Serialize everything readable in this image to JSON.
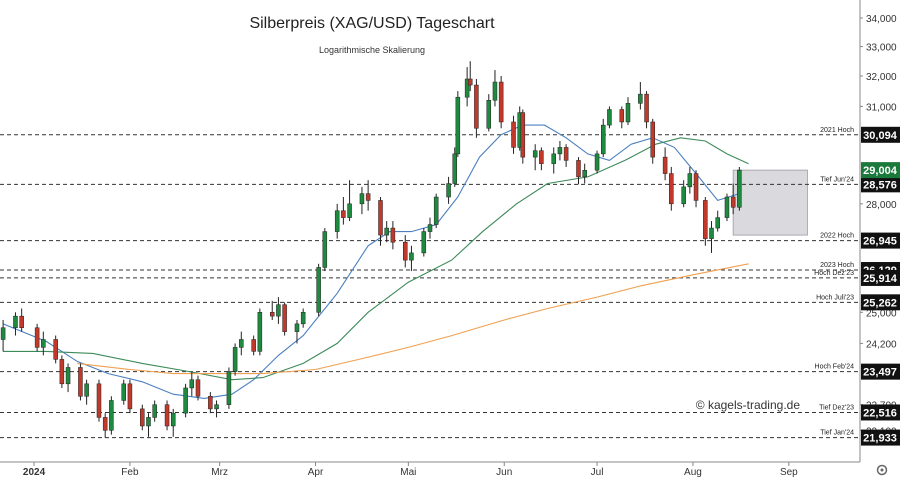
{
  "chart_data": {
    "type": "candlestick",
    "title": "Silberpreis (XAG/USD) Tageschart",
    "subtitle": "Logarithmische Skalierung",
    "watermark": "© kagels-trading.de",
    "y_scale": "log",
    "ylim": [
      21650,
      34000
    ],
    "y_ticks": [
      {
        "value": 34000,
        "label": "34,000"
      },
      {
        "value": 33000,
        "label": "33,000"
      },
      {
        "value": 32000,
        "label": "32,000"
      },
      {
        "value": 31000,
        "label": "31,000"
      },
      {
        "value": 28000,
        "label": "28,000"
      },
      {
        "value": 25000,
        "label": "25,000"
      },
      {
        "value": 24200,
        "label": "24,200"
      },
      {
        "value": 22700,
        "label": "22,700"
      },
      {
        "value": 22100,
        "label": "22,100"
      }
    ],
    "x_ticks": [
      {
        "date": "2024-01-01",
        "label": "2024"
      },
      {
        "date": "2024-02-01",
        "label": "Feb"
      },
      {
        "date": "2024-03-01",
        "label": "Mrz"
      },
      {
        "date": "2024-04-01",
        "label": "Apr"
      },
      {
        "date": "2024-05-01",
        "label": "Mai"
      },
      {
        "date": "2024-06-01",
        "label": "Jun"
      },
      {
        "date": "2024-07-01",
        "label": "Jul"
      },
      {
        "date": "2024-08-01",
        "label": "Aug"
      },
      {
        "date": "2024-09-01",
        "label": "Sep"
      }
    ],
    "x_range": [
      "2023-12-21",
      "2024-09-24"
    ],
    "levels": [
      {
        "value": 30094,
        "label": "30,094",
        "note": "2021 Hoch",
        "highlight": false
      },
      {
        "value": 28576,
        "label": "28,576",
        "note": "Tief Jun'24",
        "highlight": false
      },
      {
        "value": 26945,
        "label": "26,945",
        "note": "2022 Hoch",
        "highlight": false
      },
      {
        "value": 26129,
        "label": "26,129",
        "note": "2023 Hoch",
        "highlight": false
      },
      {
        "value": 25914,
        "label": "25,914",
        "note": "Hoch Dez'23",
        "highlight": false
      },
      {
        "value": 25262,
        "label": "25,262",
        "note": "Hoch Juli'23",
        "highlight": false
      },
      {
        "value": 23497,
        "label": "23,497",
        "note": "Hoch Feb'24",
        "highlight": false
      },
      {
        "value": 22516,
        "label": "22,516",
        "note": "Tief Dez'23",
        "highlight": false
      },
      {
        "value": 21933,
        "label": "21,933",
        "note": "Tief Jan'24",
        "highlight": false
      }
    ],
    "last_price": {
      "value": 29004,
      "label": "29,004"
    },
    "zone": {
      "from": "2024-08-14",
      "to": "2024-09-07",
      "low": 27100,
      "high": 29004
    },
    "moving_averages": [
      {
        "color": "#4a7fc1",
        "points": [
          [
            "2023-12-22",
            24700
          ],
          [
            "2024-01-05",
            24250
          ],
          [
            "2024-01-15",
            23750
          ],
          [
            "2024-01-25",
            23450
          ],
          [
            "2024-02-05",
            23250
          ],
          [
            "2024-02-15",
            22950
          ],
          [
            "2024-02-25",
            22850
          ],
          [
            "2024-03-05",
            22950
          ],
          [
            "2024-03-12",
            23300
          ],
          [
            "2024-03-20",
            23900
          ],
          [
            "2024-03-28",
            24400
          ],
          [
            "2024-04-08",
            25500
          ],
          [
            "2024-04-18",
            26800
          ],
          [
            "2024-04-25",
            27200
          ],
          [
            "2024-05-02",
            27200
          ],
          [
            "2024-05-10",
            27400
          ],
          [
            "2024-05-17",
            28200
          ],
          [
            "2024-05-24",
            29400
          ],
          [
            "2024-05-31",
            30100
          ],
          [
            "2024-06-07",
            30400
          ],
          [
            "2024-06-14",
            30400
          ],
          [
            "2024-06-21",
            30000
          ],
          [
            "2024-06-28",
            29500
          ],
          [
            "2024-07-05",
            29300
          ],
          [
            "2024-07-12",
            29800
          ],
          [
            "2024-07-19",
            30000
          ],
          [
            "2024-07-26",
            29700
          ],
          [
            "2024-08-02",
            28900
          ],
          [
            "2024-08-09",
            28100
          ],
          [
            "2024-08-16",
            28300
          ]
        ]
      },
      {
        "color": "#3c8a5a",
        "points": [
          [
            "2023-12-22",
            24000
          ],
          [
            "2024-01-05",
            24000
          ],
          [
            "2024-01-20",
            23950
          ],
          [
            "2024-02-05",
            23700
          ],
          [
            "2024-02-20",
            23500
          ],
          [
            "2024-03-05",
            23300
          ],
          [
            "2024-03-15",
            23350
          ],
          [
            "2024-03-28",
            23700
          ],
          [
            "2024-04-08",
            24200
          ],
          [
            "2024-04-18",
            25000
          ],
          [
            "2024-05-01",
            25800
          ],
          [
            "2024-05-15",
            26400
          ],
          [
            "2024-05-25",
            27200
          ],
          [
            "2024-06-05",
            28000
          ],
          [
            "2024-06-15",
            28600
          ],
          [
            "2024-06-28",
            28800
          ],
          [
            "2024-07-10",
            29300
          ],
          [
            "2024-07-20",
            29800
          ],
          [
            "2024-07-28",
            30000
          ],
          [
            "2024-08-05",
            29900
          ],
          [
            "2024-08-12",
            29500
          ],
          [
            "2024-08-19",
            29200
          ]
        ]
      },
      {
        "color": "#f0a050",
        "points": [
          [
            "2024-01-15",
            23700
          ],
          [
            "2024-02-01",
            23550
          ],
          [
            "2024-02-15",
            23450
          ],
          [
            "2024-03-01",
            23450
          ],
          [
            "2024-03-15",
            23450
          ],
          [
            "2024-04-01",
            23550
          ],
          [
            "2024-04-15",
            23800
          ],
          [
            "2024-05-01",
            24100
          ],
          [
            "2024-05-15",
            24400
          ],
          [
            "2024-06-01",
            24800
          ],
          [
            "2024-06-15",
            25100
          ],
          [
            "2024-07-01",
            25400
          ],
          [
            "2024-07-15",
            25700
          ],
          [
            "2024-08-01",
            26000
          ],
          [
            "2024-08-19",
            26300
          ]
        ]
      }
    ],
    "candles": [
      [
        "2023-12-22",
        24300,
        24800,
        24000,
        24600
      ],
      [
        "2023-12-26",
        24600,
        25000,
        24400,
        24900
      ],
      [
        "2023-12-28",
        24900,
        25100,
        24500,
        24600
      ],
      [
        "2024-01-02",
        24600,
        24700,
        24000,
        24100
      ],
      [
        "2024-01-04",
        24100,
        24500,
        23900,
        24300
      ],
      [
        "2024-01-08",
        24300,
        24400,
        23700,
        23800
      ],
      [
        "2024-01-10",
        23800,
        23900,
        23100,
        23200
      ],
      [
        "2024-01-12",
        23200,
        23700,
        23000,
        23600
      ],
      [
        "2024-01-16",
        23600,
        23700,
        22800,
        22900
      ],
      [
        "2024-01-18",
        22900,
        23300,
        22700,
        23200
      ],
      [
        "2024-01-22",
        23200,
        23300,
        22300,
        22400
      ],
      [
        "2024-01-24",
        22400,
        22500,
        21933,
        22100
      ],
      [
        "2024-01-26",
        22100,
        22900,
        22000,
        22800
      ],
      [
        "2024-01-30",
        22800,
        23300,
        22700,
        23200
      ],
      [
        "2024-02-01",
        23200,
        23300,
        22500,
        22600
      ],
      [
        "2024-02-05",
        22600,
        22700,
        22100,
        22200
      ],
      [
        "2024-02-07",
        22200,
        22500,
        21950,
        22400
      ],
      [
        "2024-02-09",
        22400,
        22800,
        22300,
        22700
      ],
      [
        "2024-02-13",
        22700,
        22800,
        22100,
        22200
      ],
      [
        "2024-02-15",
        22200,
        22600,
        21950,
        22500
      ],
      [
        "2024-02-19",
        22500,
        23200,
        22400,
        23100
      ],
      [
        "2024-02-21",
        23100,
        23497,
        22900,
        23300
      ],
      [
        "2024-02-23",
        23300,
        23400,
        22800,
        22900
      ],
      [
        "2024-02-27",
        22900,
        23000,
        22500,
        22600
      ],
      [
        "2024-02-29",
        22600,
        22800,
        22400,
        22700
      ],
      [
        "2024-03-04",
        22700,
        23600,
        22600,
        23500
      ],
      [
        "2024-03-06",
        23500,
        24200,
        23400,
        24100
      ],
      [
        "2024-03-08",
        24100,
        24500,
        23900,
        24300
      ],
      [
        "2024-03-12",
        24300,
        24400,
        23900,
        24000
      ],
      [
        "2024-03-14",
        24000,
        25100,
        23900,
        25000
      ],
      [
        "2024-03-18",
        25000,
        25300,
        24800,
        24900
      ],
      [
        "2024-03-20",
        24900,
        25400,
        24700,
        25200
      ],
      [
        "2024-03-22",
        25200,
        25262,
        24400,
        24500
      ],
      [
        "2024-03-26",
        24500,
        24800,
        24200,
        24700
      ],
      [
        "2024-03-28",
        24700,
        25100,
        24600,
        25000
      ],
      [
        "2024-04-02",
        25000,
        26300,
        24900,
        26200
      ],
      [
        "2024-04-04",
        26200,
        27300,
        26100,
        27200
      ],
      [
        "2024-04-08",
        27200,
        28000,
        27000,
        27800
      ],
      [
        "2024-04-10",
        27800,
        28200,
        27400,
        27600
      ],
      [
        "2024-04-12",
        27600,
        28700,
        27500,
        28000
      ],
      [
        "2024-04-16",
        28000,
        28500,
        27700,
        28300
      ],
      [
        "2024-04-18",
        28300,
        28700,
        27800,
        28100
      ],
      [
        "2024-04-22",
        28100,
        28200,
        26800,
        27100
      ],
      [
        "2024-04-24",
        27100,
        27500,
        26900,
        27300
      ],
      [
        "2024-04-26",
        27300,
        27500,
        26700,
        26900
      ],
      [
        "2024-04-30",
        26900,
        27100,
        26200,
        26400
      ],
      [
        "2024-05-02",
        26400,
        26800,
        26100,
        26600
      ],
      [
        "2024-05-06",
        26600,
        27300,
        26500,
        27200
      ],
      [
        "2024-05-08",
        27200,
        27600,
        27000,
        27400
      ],
      [
        "2024-05-10",
        27400,
        28300,
        27300,
        28200
      ],
      [
        "2024-05-14",
        28200,
        28800,
        28000,
        28600
      ],
      [
        "2024-05-16",
        28600,
        29700,
        28500,
        29500
      ],
      [
        "2024-05-17",
        29500,
        31500,
        29400,
        31300
      ],
      [
        "2024-05-20",
        31300,
        32300,
        31000,
        31900
      ],
      [
        "2024-05-21",
        31900,
        32500,
        31500,
        31700
      ],
      [
        "2024-05-23",
        31700,
        31900,
        30000,
        30300
      ],
      [
        "2024-05-27",
        30300,
        31400,
        30200,
        31200
      ],
      [
        "2024-05-29",
        31200,
        32200,
        31000,
        31800
      ],
      [
        "2024-05-31",
        31800,
        32000,
        30300,
        30500
      ],
      [
        "2024-06-04",
        30500,
        30700,
        29500,
        29700
      ],
      [
        "2024-06-06",
        29700,
        31000,
        29600,
        30800
      ],
      [
        "2024-06-07",
        30800,
        30900,
        29200,
        29400
      ],
      [
        "2024-06-11",
        29400,
        29800,
        29000,
        29600
      ],
      [
        "2024-06-13",
        29600,
        29700,
        29000,
        29200
      ],
      [
        "2024-06-17",
        29200,
        29700,
        28900,
        29500
      ],
      [
        "2024-06-19",
        29500,
        29900,
        29300,
        29700
      ],
      [
        "2024-06-21",
        29700,
        29800,
        29100,
        29300
      ],
      [
        "2024-06-25",
        29300,
        29400,
        28576,
        28800
      ],
      [
        "2024-06-27",
        28800,
        29200,
        28600,
        29000
      ],
      [
        "2024-07-01",
        29000,
        29600,
        28900,
        29500
      ],
      [
        "2024-07-03",
        29500,
        30600,
        29400,
        30400
      ],
      [
        "2024-07-05",
        30400,
        31000,
        30300,
        30900
      ],
      [
        "2024-07-09",
        30900,
        31000,
        30300,
        30500
      ],
      [
        "2024-07-11",
        30500,
        31300,
        30400,
        31100
      ],
      [
        "2024-07-15",
        31100,
        31800,
        30900,
        31400
      ],
      [
        "2024-07-17",
        31400,
        31500,
        30300,
        30500
      ],
      [
        "2024-07-19",
        30500,
        30600,
        29200,
        29400
      ],
      [
        "2024-07-23",
        29400,
        29700,
        28700,
        28900
      ],
      [
        "2024-07-25",
        28900,
        29100,
        27800,
        28000
      ],
      [
        "2024-07-29",
        28000,
        28700,
        27900,
        28500
      ],
      [
        "2024-07-31",
        28500,
        29100,
        28300,
        28900
      ],
      [
        "2024-08-02",
        28900,
        29000,
        27900,
        28100
      ],
      [
        "2024-08-05",
        28100,
        28200,
        26800,
        27000
      ],
      [
        "2024-08-07",
        27000,
        27500,
        26600,
        27300
      ],
      [
        "2024-08-09",
        27300,
        27800,
        27200,
        27600
      ],
      [
        "2024-08-12",
        27600,
        28300,
        27500,
        28200
      ],
      [
        "2024-08-14",
        28200,
        28600,
        27700,
        27900
      ],
      [
        "2024-08-16",
        27900,
        29100,
        27800,
        29004
      ]
    ]
  }
}
